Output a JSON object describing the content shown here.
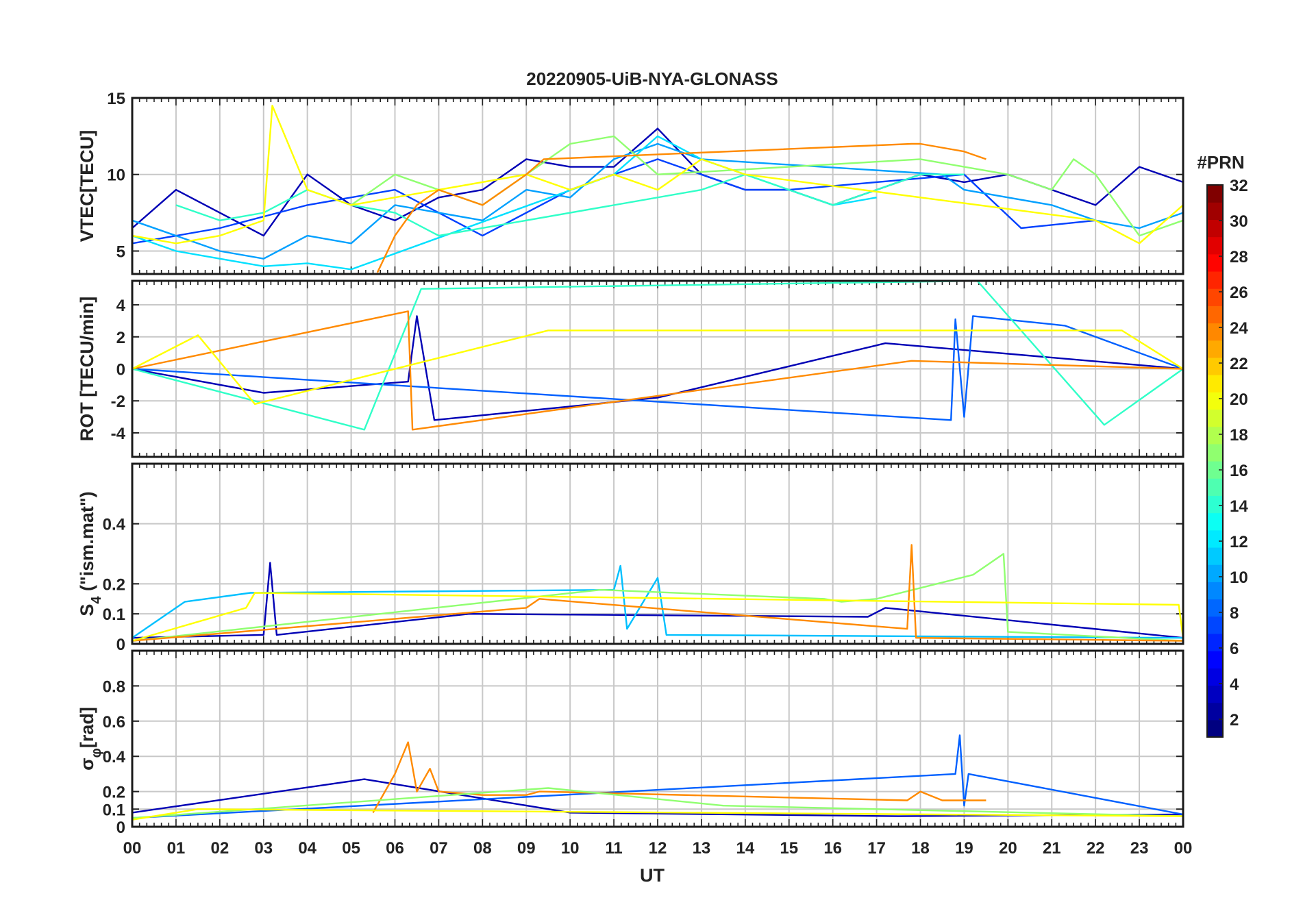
{
  "figure": {
    "title": "20220905-UiB-NYA-GLONASS",
    "xlabel": "UT",
    "x_ticks": [
      "00",
      "01",
      "02",
      "03",
      "04",
      "05",
      "06",
      "07",
      "08",
      "09",
      "10",
      "11",
      "12",
      "13",
      "14",
      "15",
      "16",
      "17",
      "18",
      "19",
      "20",
      "21",
      "22",
      "23",
      "00"
    ]
  },
  "colorbar": {
    "title": "#PRN",
    "ticks": [
      "2",
      "4",
      "6",
      "8",
      "10",
      "12",
      "14",
      "16",
      "18",
      "20",
      "22",
      "24",
      "26",
      "28",
      "30",
      "32"
    ],
    "range": [
      1,
      32
    ],
    "colormap": "jet"
  },
  "chart_data": [
    {
      "id": "vtec",
      "type": "line",
      "ylabel": "VTEC[TECU]",
      "ylim": [
        3.5,
        15
      ],
      "yticks": [
        5,
        10,
        15
      ],
      "xlim": [
        0,
        24
      ],
      "grid": true,
      "series": [
        {
          "prn": 2,
          "color": "#0000b5",
          "x": [
            0.0,
            1,
            2,
            3,
            4,
            5,
            6,
            7,
            8,
            9,
            10,
            11,
            12,
            13,
            14,
            15,
            16,
            17,
            18,
            19,
            20,
            21,
            22,
            23,
            24
          ],
          "values": [
            6.5,
            9,
            7.5,
            6,
            10,
            8,
            7,
            8.5,
            9,
            11,
            10.5,
            10.5,
            13,
            10,
            9,
            9,
            8,
            9,
            10,
            9.5,
            10,
            9,
            8,
            10.5,
            9.5
          ]
        },
        {
          "prn": 6,
          "color": "#0040ff",
          "x": [
            0,
            2,
            4,
            6,
            8,
            10,
            12,
            14,
            15,
            17,
            19,
            20.3,
            22
          ],
          "values": [
            5.5,
            6.5,
            8,
            9,
            6,
            9,
            11,
            9,
            9,
            9.5,
            10,
            6.5,
            7
          ]
        },
        {
          "prn": 10,
          "color": "#00a0ff",
          "x": [
            0,
            1,
            2,
            3,
            4,
            5,
            6,
            8,
            9,
            10,
            11,
            12,
            13,
            18.5,
            19,
            20,
            21,
            22,
            23,
            24
          ],
          "values": [
            7,
            6,
            5,
            4.5,
            6,
            5.5,
            8,
            7,
            9,
            8.5,
            11,
            12,
            11,
            10,
            9,
            8.5,
            8,
            7,
            6.5,
            7.5
          ]
        },
        {
          "prn": 13,
          "color": "#00e0ff",
          "x": [
            0,
            1,
            2,
            3,
            4,
            5,
            11,
            12,
            13,
            14,
            15,
            16,
            17
          ],
          "values": [
            6,
            5,
            4.5,
            4,
            4.2,
            3.8,
            10,
            12.5,
            11,
            10,
            9,
            8,
            8.5
          ]
        },
        {
          "prn": 15,
          "color": "#30ffc8",
          "x": [
            1,
            2,
            3,
            4,
            5,
            6,
            7,
            13,
            14,
            15,
            16,
            17,
            18,
            19
          ],
          "values": [
            8,
            7,
            7.5,
            9,
            8,
            7.5,
            6,
            9,
            10,
            9,
            8,
            9,
            10,
            10
          ]
        },
        {
          "prn": 17,
          "color": "#90ff70",
          "x": [
            5,
            6,
            7,
            8,
            9,
            10,
            11,
            12,
            18,
            19,
            20,
            21,
            21.5,
            22,
            23,
            24
          ],
          "values": [
            8,
            10,
            9,
            8,
            10,
            12,
            12.5,
            10,
            11,
            10.5,
            10,
            9,
            11,
            10,
            6,
            7
          ]
        },
        {
          "prn": 20,
          "color": "#ffff00",
          "x": [
            0,
            1,
            2,
            3,
            3.2,
            4,
            5,
            9,
            10,
            11,
            12,
            13,
            14,
            22,
            23,
            24
          ],
          "values": [
            6,
            5.5,
            6,
            7,
            14.5,
            9,
            8,
            10,
            9,
            10,
            9,
            11,
            10,
            7,
            5.5,
            8
          ]
        },
        {
          "prn": 23,
          "color": "#ff8a00",
          "x": [
            5.6,
            6,
            6.5,
            7,
            8,
            9,
            9.4,
            17.8,
            18,
            19,
            19.5
          ],
          "values": [
            3.6,
            6,
            8,
            9,
            8,
            10,
            11,
            12,
            12,
            11.5,
            11
          ]
        }
      ]
    },
    {
      "id": "rot",
      "type": "line",
      "ylabel": "ROT [TECU/min]",
      "ylim": [
        -5.5,
        5.5
      ],
      "yticks": [
        -4,
        -2,
        0,
        2,
        4
      ],
      "xlim": [
        0,
        24
      ],
      "grid": true,
      "series": [
        {
          "prn": 2,
          "color": "#0000b5",
          "x": [
            0,
            3,
            6.3,
            6.5,
            6.9,
            12,
            17.2,
            24
          ],
          "values": [
            0,
            -1.5,
            -0.8,
            3.3,
            -3.2,
            -1.8,
            1.6,
            0
          ]
        },
        {
          "prn": 8,
          "color": "#0060ff",
          "x": [
            0,
            18.7,
            18.8,
            19,
            19.2,
            21.3,
            24
          ],
          "values": [
            0,
            -3.2,
            3.1,
            -3,
            3.3,
            2.7,
            0
          ]
        },
        {
          "prn": 15,
          "color": "#30ffc8",
          "x": [
            0,
            5.3,
            6.6,
            19.3,
            22.2,
            24
          ],
          "values": [
            0,
            -3.8,
            5,
            5.5,
            -3.5,
            0
          ]
        },
        {
          "prn": 23,
          "color": "#ff8a00",
          "x": [
            0,
            6.3,
            6.4,
            17.8,
            24
          ],
          "values": [
            0,
            3.6,
            -3.8,
            0.5,
            0
          ]
        },
        {
          "prn": 20,
          "color": "#ffff00",
          "x": [
            0,
            1.5,
            2.8,
            9.5,
            22.6,
            24
          ],
          "values": [
            0,
            2.1,
            -2.2,
            2.4,
            2.4,
            0
          ]
        }
      ]
    },
    {
      "id": "s4",
      "type": "line",
      "ylabel": "S",
      "ylabel_sub": "4",
      "ylabel_tail": " (\"ism.mat\")",
      "ylim": [
        0,
        0.6
      ],
      "yticks": [
        0,
        0.1,
        0.2,
        0.4
      ],
      "xlim": [
        0,
        24
      ],
      "grid": true,
      "series": [
        {
          "prn": 2,
          "color": "#0000b5",
          "x": [
            0,
            3,
            3.15,
            3.3,
            7.7,
            16.8,
            17.2,
            24
          ],
          "values": [
            0.02,
            0.03,
            0.27,
            0.03,
            0.1,
            0.09,
            0.12,
            0.02
          ]
        },
        {
          "prn": 11,
          "color": "#00c0ff",
          "x": [
            0,
            1.2,
            2.7,
            11,
            11.15,
            11.3,
            12,
            12.2,
            24
          ],
          "values": [
            0.02,
            0.14,
            0.17,
            0.18,
            0.26,
            0.05,
            0.22,
            0.03,
            0.02
          ]
        },
        {
          "prn": 17,
          "color": "#90ff70",
          "x": [
            0,
            10.7,
            15.8,
            16.2,
            17,
            19.2,
            19.9,
            20,
            24
          ],
          "values": [
            0.01,
            0.18,
            0.15,
            0.14,
            0.15,
            0.23,
            0.3,
            0.04,
            0.01
          ]
        },
        {
          "prn": 23,
          "color": "#ff8a00",
          "x": [
            0,
            9,
            9.3,
            17.7,
            17.8,
            17.9,
            24
          ],
          "values": [
            0.01,
            0.12,
            0.15,
            0.05,
            0.33,
            0.02,
            0.01
          ]
        },
        {
          "prn": 20,
          "color": "#ffff00",
          "x": [
            0,
            2.6,
            2.8,
            23.9,
            24
          ],
          "values": [
            0.01,
            0.12,
            0.17,
            0.13,
            0.02
          ]
        }
      ]
    },
    {
      "id": "sigma_phi",
      "type": "line",
      "ylabel": "σ",
      "ylabel_sub": "φ",
      "ylabel_tail": "[rad]",
      "ylim": [
        0,
        1
      ],
      "yticks": [
        0,
        0.1,
        0.2,
        0.4,
        0.6,
        0.8
      ],
      "xlim": [
        0,
        24
      ],
      "grid": true,
      "series": [
        {
          "prn": 2,
          "color": "#0000b5",
          "x": [
            0,
            5.3,
            10,
            17.5,
            24
          ],
          "values": [
            0.08,
            0.27,
            0.08,
            0.06,
            0.07
          ]
        },
        {
          "prn": 8,
          "color": "#0060ff",
          "x": [
            0,
            18.8,
            18.9,
            19,
            19.1,
            24
          ],
          "values": [
            0.05,
            0.3,
            0.52,
            0.12,
            0.3,
            0.07
          ]
        },
        {
          "prn": 23,
          "color": "#ff8a00",
          "x": [
            5.5,
            6,
            6.3,
            6.5,
            6.8,
            7,
            8,
            9,
            9.3,
            17.7,
            18,
            18.5,
            19.5
          ],
          "values": [
            0.08,
            0.3,
            0.48,
            0.2,
            0.33,
            0.2,
            0.18,
            0.18,
            0.2,
            0.15,
            0.2,
            0.15,
            0.15
          ]
        },
        {
          "prn": 17,
          "color": "#90ff70",
          "x": [
            0,
            9.5,
            13.5,
            17,
            24
          ],
          "values": [
            0.05,
            0.22,
            0.12,
            0.1,
            0.06
          ]
        },
        {
          "prn": 20,
          "color": "#ffff00",
          "x": [
            0,
            1.5,
            24
          ],
          "values": [
            0.04,
            0.1,
            0.06
          ]
        }
      ]
    }
  ]
}
